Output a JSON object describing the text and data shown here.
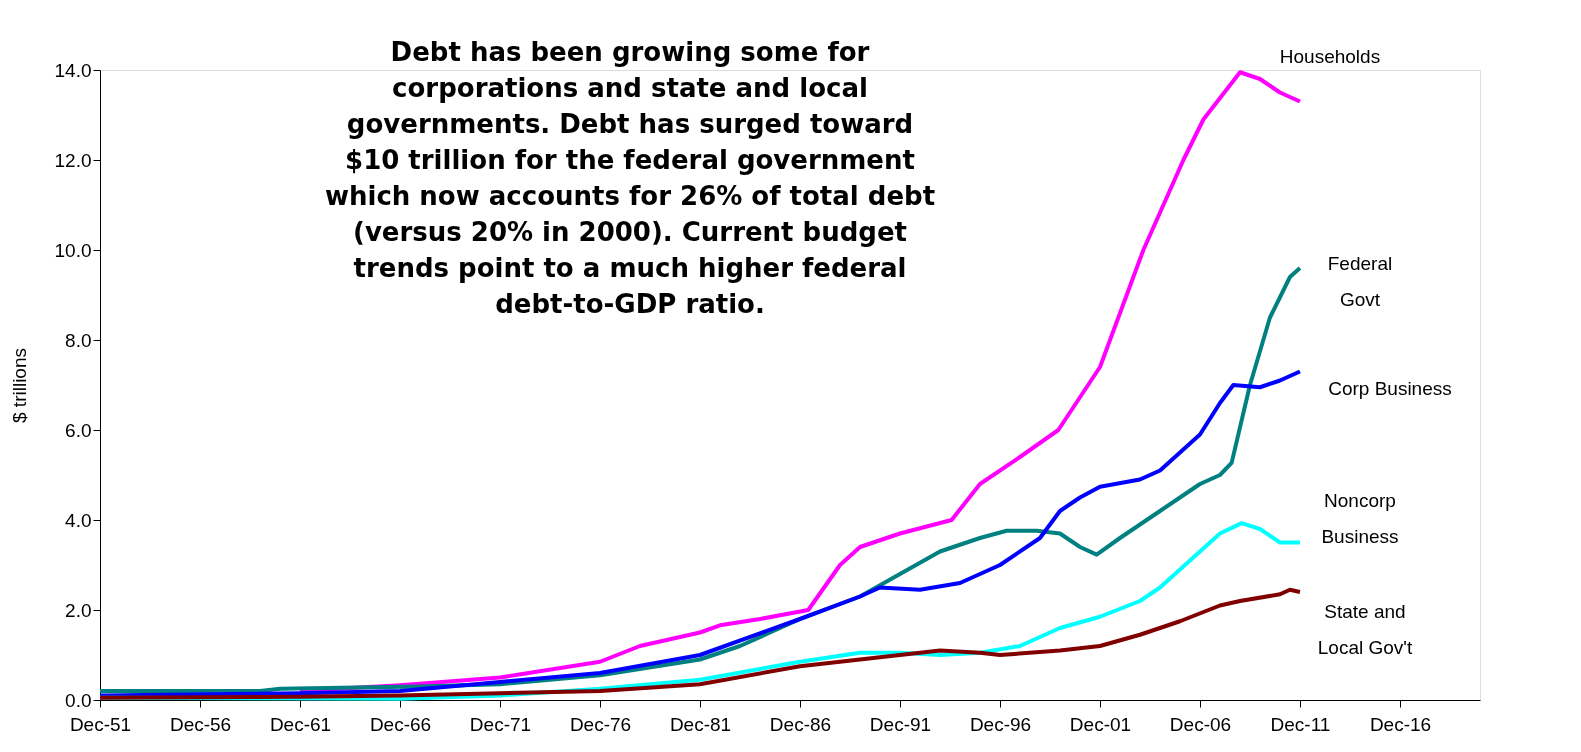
{
  "chart_data": {
    "type": "line",
    "ylabel": "$ trillions",
    "annotations": [
      "Debt has been growing some for\ncorporations and state and local\ngovernments.  Debt has surged toward\n$10 trillion for the federal government\nwhich now accounts for 26% of total debt\n(versus 20% in 2000). Current budget\ntrends point to a much higher federal\ndebt-to-GDP ratio."
    ],
    "xlim": [
      "1951-12",
      "2020-12"
    ],
    "xticks": [
      {
        "value": "1951-12",
        "label": "Dec-51"
      },
      {
        "value": "1956-12",
        "label": "Dec-56"
      },
      {
        "value": "1961-12",
        "label": "Dec-61"
      },
      {
        "value": "1966-12",
        "label": "Dec-66"
      },
      {
        "value": "1971-12",
        "label": "Dec-71"
      },
      {
        "value": "1976-12",
        "label": "Dec-76"
      },
      {
        "value": "1981-12",
        "label": "Dec-81"
      },
      {
        "value": "1986-12",
        "label": "Dec-86"
      },
      {
        "value": "1991-12",
        "label": "Dec-91"
      },
      {
        "value": "1996-12",
        "label": "Dec-96"
      },
      {
        "value": "2001-12",
        "label": "Dec-01"
      },
      {
        "value": "2006-12",
        "label": "Dec-06"
      },
      {
        "value": "2011-12",
        "label": "Dec-11"
      },
      {
        "value": "2016-12",
        "label": "Dec-16"
      }
    ],
    "ylim": [
      0,
      14
    ],
    "yticks": [
      {
        "value": 0,
        "label": "0.0"
      },
      {
        "value": 2,
        "label": "2.0"
      },
      {
        "value": 4,
        "label": "4.0"
      },
      {
        "value": 6,
        "label": "6.0"
      },
      {
        "value": 8,
        "label": "8.0"
      },
      {
        "value": 10,
        "label": "10.0"
      },
      {
        "value": 12,
        "label": "12.0"
      },
      {
        "value": 14,
        "label": "14.0"
      }
    ],
    "grid": false,
    "marker": "none",
    "line_style": "solid",
    "series": [
      {
        "name": "Households",
        "color": "#ff00ff",
        "x": [
          "1961-12",
          "1964-12",
          "1966-12",
          "1971-12",
          "1976-12",
          "1978-12",
          "1981-12",
          "1982-12",
          "1984-12",
          "1987-05",
          "1988-12",
          "1989-12",
          "1991-12",
          "1994-07",
          "1995-12",
          "1997-12",
          "1999-11",
          "2001-12",
          "2004-02",
          "2006-02",
          "2007-02",
          "2008-12",
          "2009-12",
          "2010-12",
          "2011-12"
        ],
        "values": [
          0.2,
          0.28,
          0.33,
          0.5,
          0.85,
          1.2,
          1.5,
          1.66,
          1.8,
          2.0,
          3.0,
          3.4,
          3.7,
          4.0,
          4.8,
          5.4,
          6.0,
          7.4,
          10.0,
          12.0,
          12.9,
          13.95,
          13.8,
          13.5,
          13.3
        ]
      },
      {
        "name": "Federal\nGovt",
        "color": "#008080",
        "x": [
          "1951-12",
          "1959-12",
          "1960-12",
          "1967-12",
          "1971-12",
          "1976-12",
          "1981-12",
          "1983-12",
          "1986-12",
          "1989-12",
          "1991-12",
          "1993-12",
          "1995-12",
          "1997-04",
          "1998-10",
          "1999-12",
          "2000-12",
          "2001-10",
          "2002-12",
          "2004-12",
          "2005-12",
          "2006-12",
          "2007-12",
          "2008-07",
          "2009-06",
          "2010-06",
          "2011-06",
          "2011-12"
        ],
        "values": [
          0.2,
          0.2,
          0.25,
          0.3,
          0.35,
          0.55,
          0.9,
          1.2,
          1.8,
          2.3,
          2.8,
          3.3,
          3.6,
          3.76,
          3.76,
          3.7,
          3.4,
          3.23,
          3.6,
          4.2,
          4.5,
          4.8,
          5.0,
          5.27,
          7.0,
          8.5,
          9.4,
          9.6
        ]
      },
      {
        "name": "Corp Business",
        "color": "#0000ff",
        "x": [
          "1951-12",
          "1961-12",
          "1966-12",
          "1971-12",
          "1976-12",
          "1981-12",
          "1986-12",
          "1989-12",
          "1990-12",
          "1992-12",
          "1994-12",
          "1996-12",
          "1998-12",
          "1999-12",
          "2000-12",
          "2001-12",
          "2003-12",
          "2004-12",
          "2005-12",
          "2006-12",
          "2007-12",
          "2008-08",
          "2009-12",
          "2010-12",
          "2011-12"
        ],
        "values": [
          0.1,
          0.15,
          0.2,
          0.4,
          0.6,
          1.0,
          1.8,
          2.3,
          2.5,
          2.45,
          2.6,
          3.0,
          3.6,
          4.2,
          4.5,
          4.74,
          4.9,
          5.1,
          5.5,
          5.9,
          6.6,
          7.0,
          6.95,
          7.1,
          7.3
        ]
      },
      {
        "name": "Noncorp\nBusiness",
        "color": "#00ffff",
        "x": [
          "1951-12",
          "1966-12",
          "1971-12",
          "1976-12",
          "1981-12",
          "1986-12",
          "1989-12",
          "1991-12",
          "1993-12",
          "1995-12",
          "1997-12",
          "1999-12",
          "2001-12",
          "2003-12",
          "2004-12",
          "2005-12",
          "2006-12",
          "2007-12",
          "2009-01",
          "2009-12",
          "2010-12",
          "2011-12"
        ],
        "values": [
          0.05,
          0.03,
          0.1,
          0.25,
          0.45,
          0.85,
          1.05,
          1.05,
          1.0,
          1.05,
          1.2,
          1.6,
          1.85,
          2.2,
          2.5,
          2.9,
          3.3,
          3.7,
          3.93,
          3.8,
          3.5,
          3.5
        ]
      },
      {
        "name": "State and\nLocal Gov't",
        "color": "#800000",
        "x": [
          "1951-12",
          "1961-12",
          "1966-12",
          "1971-12",
          "1976-12",
          "1981-12",
          "1986-12",
          "1991-12",
          "1993-12",
          "1995-12",
          "1996-12",
          "1999-12",
          "2001-12",
          "2003-12",
          "2005-12",
          "2007-12",
          "2008-12",
          "2010-12",
          "2011-06",
          "2011-12"
        ],
        "values": [
          0.05,
          0.07,
          0.1,
          0.15,
          0.2,
          0.35,
          0.75,
          1.0,
          1.1,
          1.05,
          1.0,
          1.1,
          1.2,
          1.45,
          1.75,
          2.1,
          2.2,
          2.35,
          2.45,
          2.4
        ]
      }
    ]
  }
}
